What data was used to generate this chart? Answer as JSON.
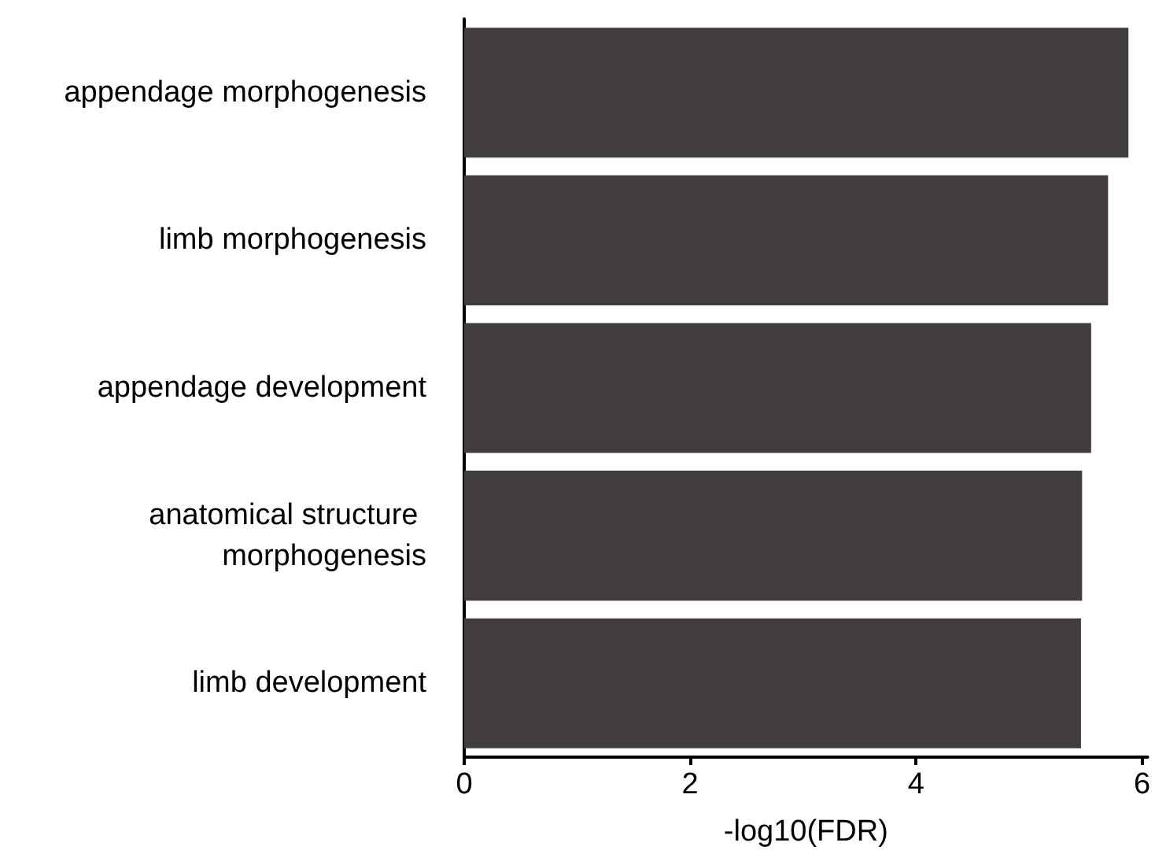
{
  "chart_data": {
    "type": "bar",
    "orientation": "horizontal",
    "categories": [
      "appendage morphogenesis",
      "limb morphogenesis",
      "appendage development",
      "anatomical structure morphogenesis",
      "limb development"
    ],
    "values": [
      5.88,
      5.7,
      5.55,
      5.47,
      5.46
    ],
    "color": "#413c3d",
    "xlabel": "-log10(FDR)",
    "xlim": [
      0,
      6.05
    ],
    "xticks": [
      0,
      2,
      4,
      6
    ],
    "grid": false
  }
}
